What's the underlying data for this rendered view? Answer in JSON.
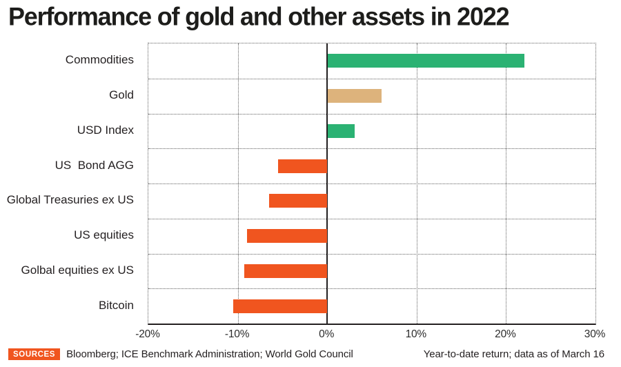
{
  "title": "Performance of gold and other assets in 2022",
  "chart_data": {
    "type": "bar",
    "orientation": "horizontal",
    "title": "Performance of gold and other assets in 2022",
    "categories": [
      "Commodities",
      "Gold",
      "USD Index",
      "US  Bond AGG",
      "Global Treasuries ex US",
      "US equities",
      "Golbal equities ex US",
      "Bitcoin"
    ],
    "values": [
      22,
      6,
      3,
      -5.5,
      -6.5,
      -9,
      -9.3,
      -10.5
    ],
    "unit": "%",
    "bar_colors": [
      "#2bb273",
      "#ddb37c",
      "#2bb273",
      "#f0551f",
      "#f0551f",
      "#f0551f",
      "#f0551f",
      "#f0551f"
    ],
    "xlim": [
      -20,
      30
    ],
    "x_ticks": [
      -20,
      -10,
      0,
      10,
      20,
      30
    ],
    "x_tick_labels": [
      "-20%",
      "-10%",
      "0%",
      "10%",
      "20%",
      "30%"
    ],
    "grid": "dotted",
    "zero_line": true,
    "legend": "none"
  },
  "colors": {
    "positive_green": "#2bb273",
    "gold_tan": "#ddb37c",
    "negative_orange": "#f0551f",
    "axis_black": "#231f20",
    "badge_orange": "#f0551f"
  },
  "footer": {
    "sources_label": "SOURCES",
    "sources_text": "Bloomberg; ICE Benchmark Administration; World Gold Council",
    "note": "Year-to-date return; data as of March 16"
  }
}
